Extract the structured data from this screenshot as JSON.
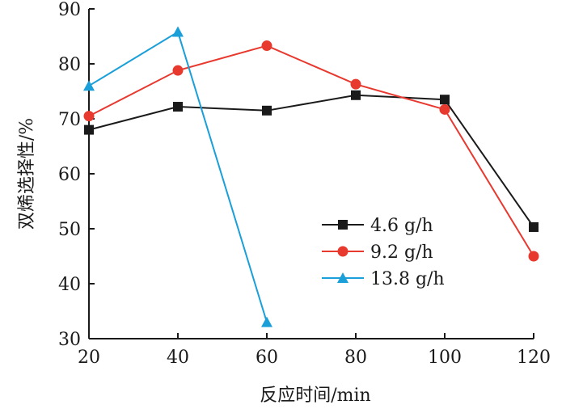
{
  "chart_data": {
    "type": "line",
    "xlabel": "反应时间/min",
    "ylabel": "双烯选择性/%",
    "xlim": [
      20,
      120
    ],
    "ylim": [
      30,
      90
    ],
    "x_ticks": [
      "20",
      "40",
      "60",
      "80",
      "100",
      "120"
    ],
    "y_ticks": [
      "30",
      "40",
      "50",
      "60",
      "70",
      "80",
      "90"
    ],
    "grid": false,
    "legend_position": "center-right",
    "series": [
      {
        "name": "4.6 g/h",
        "color": "#1a1a1a",
        "marker": "square",
        "x": [
          20,
          40,
          60,
          80,
          100,
          120
        ],
        "y": [
          68.0,
          72.2,
          71.5,
          74.3,
          73.5,
          50.3
        ]
      },
      {
        "name": "9.2 g/h",
        "color": "#e8392f",
        "marker": "circle",
        "x": [
          20,
          40,
          60,
          80,
          100,
          120
        ],
        "y": [
          70.5,
          78.8,
          83.3,
          76.3,
          71.7,
          45.0
        ]
      },
      {
        "name": "13.8 g/h",
        "color": "#1a9fd9",
        "marker": "triangle",
        "x": [
          20,
          40,
          60
        ],
        "y": [
          76.0,
          85.8,
          33.0
        ]
      }
    ]
  }
}
